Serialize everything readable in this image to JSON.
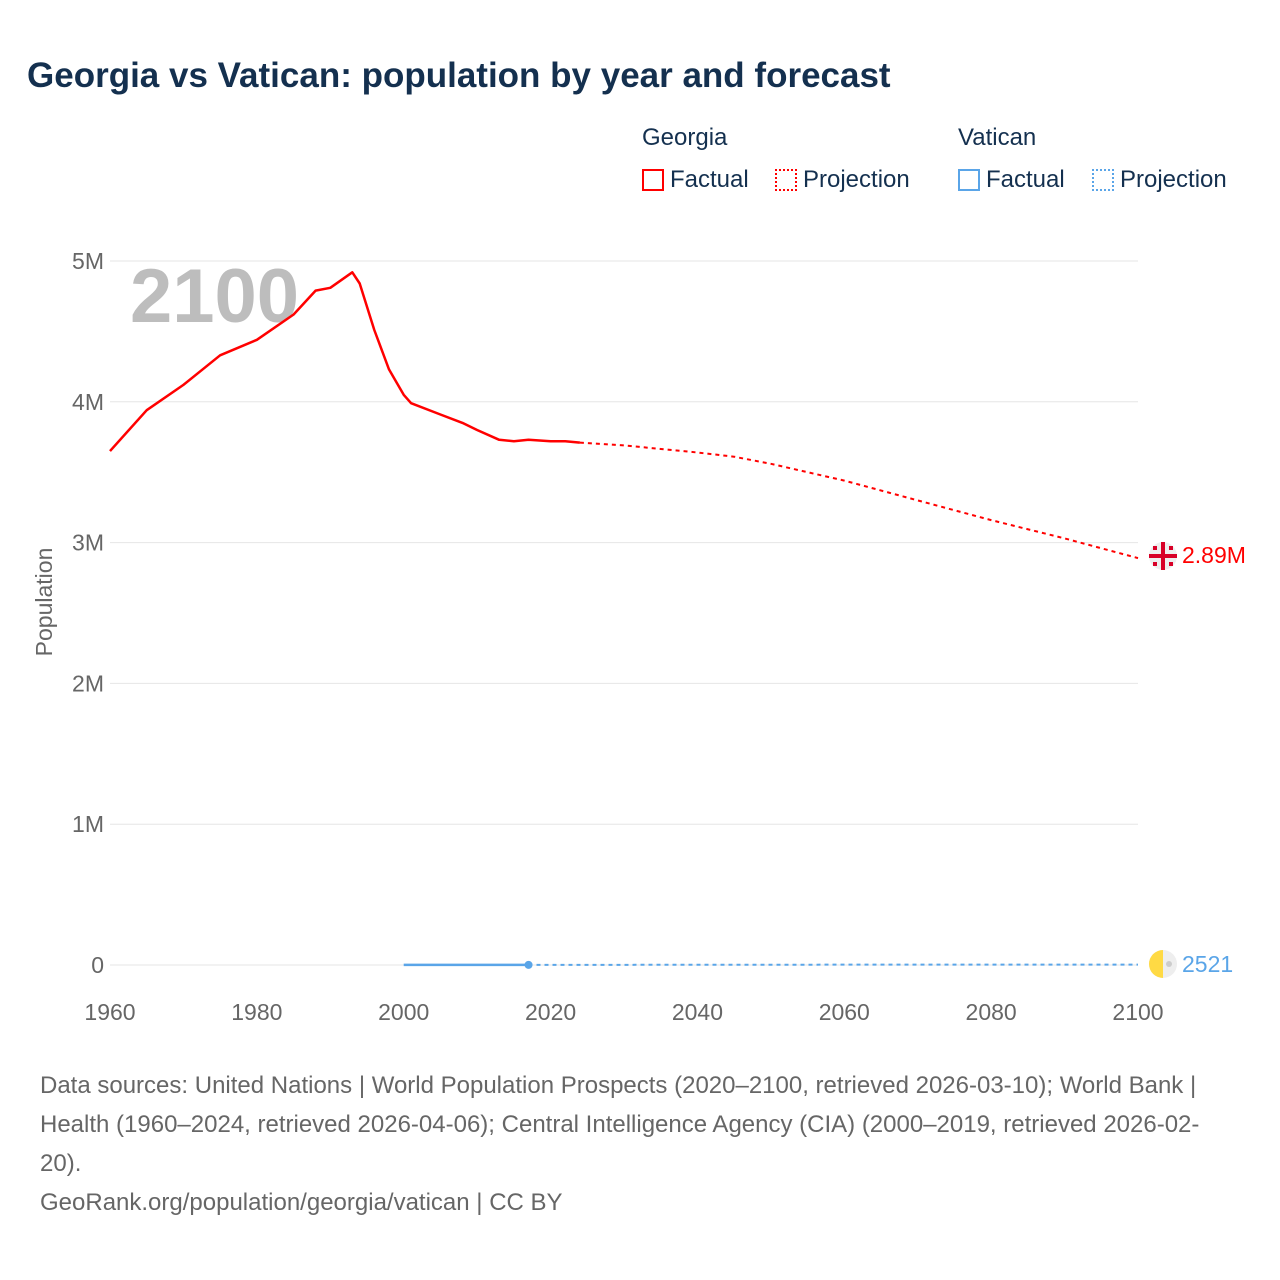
{
  "title": "Georgia vs Vatican: population by year and forecast",
  "legend": {
    "groups": [
      {
        "name": "Georgia",
        "color": "#ff0000",
        "factual": "Factual",
        "projection": "Projection"
      },
      {
        "name": "Vatican",
        "color": "#5aa5e8",
        "factual": "Factual",
        "projection": "Projection"
      }
    ]
  },
  "watermark_year": "2100",
  "end_labels": {
    "georgia": "2.89M",
    "vatican": "2521"
  },
  "chart_data": {
    "type": "line",
    "title": "Georgia vs Vatican: population by year and forecast",
    "xlabel": "",
    "ylabel": "Population",
    "xlim": [
      1960,
      2100
    ],
    "ylim": [
      0,
      5000000
    ],
    "x_ticks": [
      "1960",
      "1980",
      "2000",
      "2020",
      "2040",
      "2060",
      "2080",
      "2100"
    ],
    "y_ticks": [
      "0",
      "1M",
      "2M",
      "3M",
      "4M",
      "5M"
    ],
    "grid": true,
    "legend_position": "top-right",
    "series": [
      {
        "name": "Georgia",
        "kind": "factual",
        "color": "#ff0000",
        "x": [
          1960,
          1965,
          1970,
          1975,
          1980,
          1985,
          1988,
          1990,
          1993,
          1994,
          1996,
          1998,
          2000,
          2001,
          2005,
          2008,
          2010,
          2013,
          2015,
          2017,
          2020,
          2022,
          2024
        ],
        "y": [
          3650000,
          3940000,
          4120000,
          4330000,
          4440000,
          4620000,
          4790000,
          4810000,
          4920000,
          4840000,
          4510000,
          4230000,
          4050000,
          3990000,
          3910000,
          3850000,
          3800000,
          3730000,
          3720000,
          3730000,
          3720000,
          3720000,
          3710000
        ]
      },
      {
        "name": "Georgia",
        "kind": "projection",
        "color": "#ff0000",
        "x": [
          2024,
          2030,
          2040,
          2045,
          2050,
          2060,
          2070,
          2080,
          2090,
          2100
        ],
        "y": [
          3710000,
          3690000,
          3640000,
          3610000,
          3560000,
          3440000,
          3300000,
          3160000,
          3030000,
          2890000
        ]
      },
      {
        "name": "Vatican",
        "kind": "factual",
        "color": "#5aa5e8",
        "x": [
          2000,
          2005,
          2010,
          2017
        ],
        "y": [
          880,
          920,
          840,
          1000
        ]
      },
      {
        "name": "Vatican",
        "kind": "projection",
        "color": "#5aa5e8",
        "x": [
          2017,
          2050,
          2100
        ],
        "y": [
          1000,
          1800,
          2521
        ]
      }
    ]
  },
  "footer": {
    "sources": "Data sources: United Nations | World Population Prospects (2020–2100, retrieved 2026-03-10); World Bank | Health (1960–2024, retrieved 2026-04-06); Central Intelligence Agency (CIA) (2000–2019, retrieved 2026-02-20).",
    "credit": "GeoRank.org/population/georgia/vatican | CC BY"
  }
}
